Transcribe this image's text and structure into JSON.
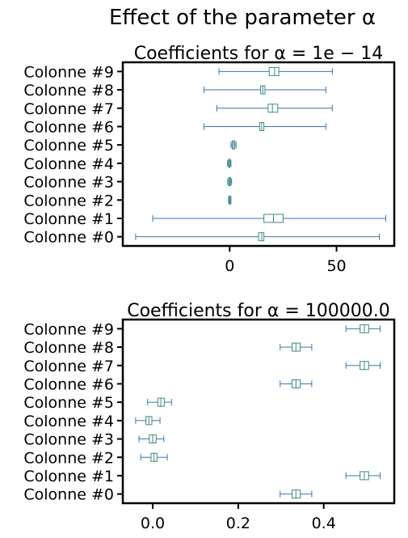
{
  "figure": {
    "title": "Effect of the parameter α"
  },
  "chart_data": [
    {
      "type": "boxplot",
      "title": "Coefficients for α = 1e − 14",
      "orientation": "horizontal",
      "categories": [
        "Colonne #0",
        "Colonne #1",
        "Colonne #2",
        "Colonne #3",
        "Colonne #4",
        "Colonne #5",
        "Colonne #6",
        "Colonne #7",
        "Colonne #8",
        "Colonne #9"
      ],
      "boxes": [
        {
          "whislo": -44,
          "q1": 13.5,
          "med": 15.0,
          "q3": 16.0,
          "whishi": 70
        },
        {
          "whislo": -36,
          "q1": 16.0,
          "med": 20.5,
          "q3": 25.0,
          "whishi": 73
        },
        {
          "whislo": -0.5,
          "q1": -0.3,
          "med": 0.0,
          "q3": 0.3,
          "whishi": 0.6
        },
        {
          "whislo": -0.9,
          "q1": -0.4,
          "med": 0.0,
          "q3": 0.4,
          "whishi": 0.9
        },
        {
          "whislo": -1.0,
          "q1": -0.5,
          "med": -0.2,
          "q3": 0.2,
          "whishi": 0.6
        },
        {
          "whislo": 0.6,
          "q1": 1.2,
          "med": 1.8,
          "q3": 2.4,
          "whishi": 3.0
        },
        {
          "whislo": -12,
          "q1": 14.0,
          "med": 15.0,
          "q3": 16.0,
          "whishi": 45
        },
        {
          "whislo": -6,
          "q1": 18.0,
          "med": 20.0,
          "q3": 22.5,
          "whishi": 48
        },
        {
          "whislo": -12,
          "q1": 14.5,
          "med": 15.5,
          "q3": 16.5,
          "whishi": 45
        },
        {
          "whislo": -5,
          "q1": 18.5,
          "med": 21.0,
          "q3": 23.0,
          "whishi": 48
        }
      ],
      "xticks": [
        0,
        50
      ],
      "xtick_labels": [
        "0",
        "50"
      ],
      "xlim": [
        -50,
        77
      ],
      "xlabel": "",
      "ylabel": "",
      "colors": {
        "box": "#3b8a84",
        "whisker": "#3976af",
        "median": "#3b8a84"
      }
    },
    {
      "type": "boxplot",
      "title": "Coefficients for α = 100000.0",
      "orientation": "horizontal",
      "categories": [
        "Colonne #0",
        "Colonne #1",
        "Colonne #2",
        "Colonne #3",
        "Colonne #4",
        "Colonne #5",
        "Colonne #6",
        "Colonne #7",
        "Colonne #8",
        "Colonne #9"
      ],
      "boxes": [
        {
          "whislo": 0.298,
          "q1": 0.326,
          "med": 0.335,
          "q3": 0.345,
          "whishi": 0.372
        },
        {
          "whislo": 0.452,
          "q1": 0.485,
          "med": 0.495,
          "q3": 0.505,
          "whishi": 0.532
        },
        {
          "whislo": -0.028,
          "q1": -0.004,
          "med": 0.003,
          "q3": 0.01,
          "whishi": 0.034
        },
        {
          "whislo": -0.032,
          "q1": -0.008,
          "med": 0.0,
          "q3": 0.008,
          "whishi": 0.026
        },
        {
          "whislo": -0.04,
          "q1": -0.016,
          "med": -0.009,
          "q3": -0.002,
          "whishi": 0.017
        },
        {
          "whislo": -0.012,
          "q1": 0.012,
          "med": 0.019,
          "q3": 0.027,
          "whishi": 0.044
        },
        {
          "whislo": 0.298,
          "q1": 0.326,
          "med": 0.335,
          "q3": 0.345,
          "whishi": 0.372
        },
        {
          "whislo": 0.452,
          "q1": 0.485,
          "med": 0.495,
          "q3": 0.505,
          "whishi": 0.532
        },
        {
          "whislo": 0.298,
          "q1": 0.326,
          "med": 0.335,
          "q3": 0.345,
          "whishi": 0.372
        },
        {
          "whislo": 0.452,
          "q1": 0.485,
          "med": 0.495,
          "q3": 0.505,
          "whishi": 0.532
        }
      ],
      "xticks": [
        0.0,
        0.2,
        0.4
      ],
      "xtick_labels": [
        "0.0",
        "0.2",
        "0.4"
      ],
      "xlim": [
        -0.07,
        0.565
      ],
      "xlabel": "",
      "ylabel": "",
      "colors": {
        "box": "#3b8a84",
        "whisker": "#3976af",
        "median": "#3b8a84"
      }
    }
  ]
}
